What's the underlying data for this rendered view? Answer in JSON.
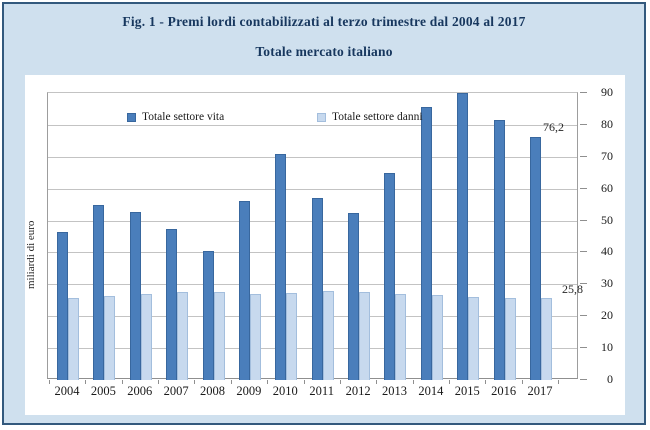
{
  "figure": {
    "title": "Fig. 1 - Premi lordi contabilizzati al terzo trimestre dal 2004 al 2017",
    "subtitle": "Totale mercato italiano"
  },
  "chart_data": {
    "type": "bar",
    "title": "Fig. 1 - Premi lordi contabilizzati al terzo trimestre dal 2004 al 2017",
    "subtitle": "Totale mercato italiano",
    "categories": [
      "2004",
      "2005",
      "2006",
      "2007",
      "2008",
      "2009",
      "2010",
      "2011",
      "2012",
      "2013",
      "2014",
      "2015",
      "2016",
      "2017"
    ],
    "series": [
      {
        "name": "Totale settore vita",
        "color": "#4a7ebb",
        "values": [
          46.5,
          54.8,
          52.8,
          47.2,
          40.3,
          56.2,
          70.9,
          57.2,
          52.3,
          64.8,
          85.6,
          90.0,
          81.4,
          76.2
        ]
      },
      {
        "name": "Totale settore danni",
        "color": "#c7d9ee",
        "values": [
          25.8,
          26.3,
          27.0,
          27.5,
          27.6,
          27.0,
          27.3,
          27.9,
          27.7,
          27.0,
          26.5,
          26.0,
          25.7,
          25.8
        ]
      }
    ],
    "ylabel": "miliardi di euro",
    "xlabel": "",
    "ylim": [
      0,
      90
    ],
    "yticks": [
      0,
      10,
      20,
      30,
      40,
      50,
      60,
      70,
      80,
      90
    ],
    "grid": true,
    "legend_position": "top-inside",
    "data_labels": [
      {
        "series": "Totale settore vita",
        "category": "2017",
        "value": 76.2,
        "text": "76,2"
      },
      {
        "series": "Totale settore danni",
        "category": "2017",
        "value": 25.8,
        "text": "25,8"
      }
    ]
  },
  "colors": {
    "figure_bg": "#cfe0ee",
    "figure_border": "#33597d",
    "title_text": "#17375e",
    "bar_vita": "#4a7ebb",
    "bar_danni": "#c7d9ee",
    "gridline": "#c3c3c3",
    "axis": "#8f8f8f"
  }
}
